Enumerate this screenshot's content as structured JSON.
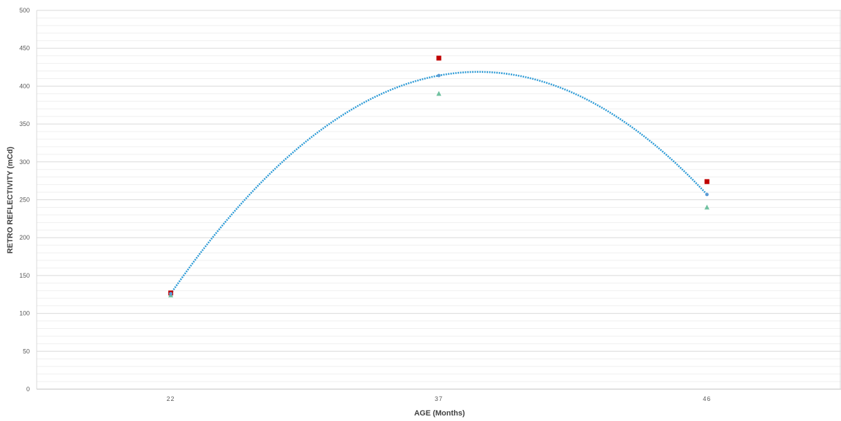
{
  "chart_data": {
    "type": "scatter",
    "title": "",
    "xlabel": "AGE (Months)",
    "ylabel": "RETRO REFLECTIVITY (mCd)",
    "categories": [
      "22",
      "37",
      "46"
    ],
    "ylim": [
      0,
      500
    ],
    "ytick_step": 50,
    "minor_grid_step": 10,
    "grid": true,
    "legend": "none",
    "series": [
      {
        "marker": "square",
        "color": "#c00000",
        "values": [
          127,
          437,
          274
        ]
      },
      {
        "marker": "triangle",
        "color": "#70c1a0",
        "values": [
          124,
          390,
          240
        ]
      },
      {
        "marker": "circle",
        "color": "#5b9bd5",
        "values": [
          126,
          414,
          257
        ]
      }
    ],
    "trendline": {
      "kind": "polynomial",
      "style": "dotted",
      "color": "#2e9bd6",
      "x": [
        22,
        37,
        46
      ],
      "y": [
        126,
        414,
        257
      ]
    }
  }
}
